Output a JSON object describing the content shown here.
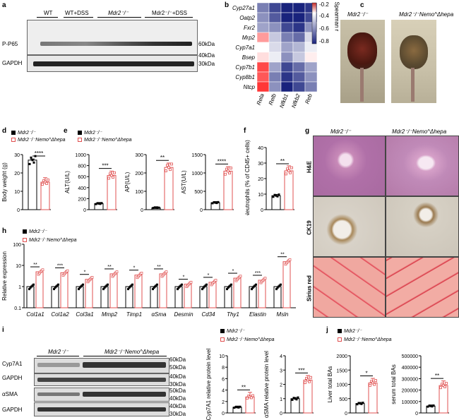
{
  "panels": {
    "a": {
      "letter": "a",
      "groups": [
        "WT",
        "WT+DSS",
        "Mdr2⁻/⁻",
        "Mdr2⁻/⁻+DSS"
      ],
      "rows": [
        "P-P65",
        "GAPDH"
      ],
      "markers": [
        "60kDa",
        "40kDa",
        "30kDa"
      ]
    },
    "b": {
      "letter": "b",
      "genes": [
        "Cyp27a1",
        "Oatp2",
        "Fxr2",
        "Mrp2",
        "Cyp7a1",
        "Bsep",
        "Cyp7b1",
        "Cyp8b1",
        "Ntcp"
      ],
      "columns": [
        "Rela",
        "Relb",
        "Nfkb1",
        "Nfkb2",
        "Reb"
      ],
      "colorbar_ticks": [
        "-0.2",
        "-0.4",
        "-0.6",
        "-0.8"
      ],
      "colorbar_label": "Spearman r"
    },
    "c": {
      "letter": "c",
      "labels": [
        "Mdr2⁻/⁻",
        "Mdr2⁻/⁻Nemo^Δhepa"
      ]
    },
    "d": {
      "letter": "d",
      "legend": [
        "Mdr2⁻/⁻",
        "Mdr2⁻/⁻Nemo^Δhepa"
      ],
      "ylabel": "Body weight (g)",
      "yticks": [
        "0",
        "10",
        "20",
        "30"
      ],
      "sig": "****"
    },
    "e": {
      "letter": "e",
      "legend": [
        "Mdr2⁻/⁻",
        "Mdr2⁻/⁻Nemo^Δhepa"
      ],
      "plots": [
        {
          "ylabel": "ALT(U/L)",
          "yticks": [
            "0",
            "200",
            "400",
            "600",
            "800",
            "1000"
          ],
          "sig": "***"
        },
        {
          "ylabel": "AP(U/L)",
          "yticks": [
            "0",
            "100",
            "200",
            "300"
          ],
          "sig": "**"
        },
        {
          "ylabel": "AST(U/L)",
          "yticks": [
            "0",
            "500",
            "1000",
            "1500"
          ],
          "sig": "****"
        }
      ]
    },
    "f": {
      "letter": "f",
      "ylabel": "Neutrophils (% of CD45+ cells)",
      "yticks": [
        "0",
        "10",
        "20",
        "30",
        "40"
      ],
      "sig": "**"
    },
    "g": {
      "letter": "g",
      "cols": [
        "Mdr2⁻/⁻",
        "Mdr2⁻/⁻Nemo^Δhepa"
      ],
      "rows": [
        "H&E",
        "CK19",
        "Sirius red"
      ]
    },
    "h": {
      "letter": "h",
      "legend": [
        "Mdr2⁻/⁻",
        "Mdr2⁻/⁻Nemo^Δhepa"
      ],
      "ylabel": "Relative expression",
      "yticks": [
        "100",
        "10",
        "1",
        "0.1"
      ],
      "genes": [
        "Col1a1",
        "Col1a2",
        "Col3a1",
        "Mmp2",
        "Timp1",
        "αSma",
        "Desmin",
        "Cd34",
        "Thy1",
        "Elastin",
        "Msln"
      ],
      "sig": [
        "**",
        "***",
        "*",
        "**",
        "*",
        "**",
        "*",
        "*",
        "*",
        "***",
        "**"
      ]
    },
    "i": {
      "letter": "i",
      "groups": [
        "Mdr2⁻/⁻",
        "Mdr2⁻/⁻Nemo^Δhepa"
      ],
      "rows": [
        "Cyp7A1",
        "GAPDH",
        "αSMA",
        "GAPDH"
      ],
      "markers": [
        "60kDa",
        "50kDa",
        "40kDa",
        "30kDa",
        "50kDa",
        "40kDa",
        "40kDa",
        "30kDa"
      ],
      "legend": [
        "Mdr2⁻/⁻",
        "Mdr2⁻/⁻Nemo^Δhepa"
      ],
      "plot1": {
        "ylabel": "Cyp7A1 relative protein level",
        "yticks": [
          "0",
          "2",
          "4",
          "6",
          "8",
          "10"
        ],
        "sig": "**"
      },
      "plot2": {
        "ylabel": "αSMA relative protein level",
        "yticks": [
          "0",
          "1",
          "2",
          "3",
          "4"
        ],
        "sig": "***"
      }
    },
    "j": {
      "letter": "j",
      "legend": [
        "Mdr2⁻/⁻",
        "Mdr2⁻/⁻Nemo^Δhepa"
      ],
      "plot1": {
        "ylabel": "Liver total BAs",
        "yticks": [
          "0",
          "500",
          "1000",
          "1500",
          "2000"
        ],
        "sig": "*"
      },
      "plot2": {
        "ylabel": "serum total BAs",
        "yticks": [
          "0",
          "100000",
          "200000",
          "300000",
          "400000",
          "500000"
        ],
        "sig": "**"
      }
    }
  },
  "chart_data": [
    {
      "type": "heatmap",
      "rows": [
        "Cyp27a1",
        "Oatp2",
        "Fxr2",
        "Mrp2",
        "Cyp7a1",
        "Bsep",
        "Cyp7b1",
        "Cyp8b1",
        "Ntcp"
      ],
      "columns": [
        "Rela",
        "Relb",
        "Nfkb1",
        "Nfkb2",
        "Reb"
      ],
      "values": [
        [
          -0.55,
          -0.7,
          -0.85,
          -0.8,
          -0.75
        ],
        [
          -0.5,
          -0.65,
          -0.85,
          -0.8,
          -0.7
        ],
        [
          -0.45,
          -0.5,
          -0.7,
          -0.75,
          -0.5
        ],
        [
          0.1,
          -0.35,
          -0.55,
          -0.6,
          -0.3
        ],
        [
          -0.2,
          -0.3,
          -0.45,
          -0.4,
          -0.25
        ],
        [
          -0.1,
          -0.25,
          -0.5,
          -0.35,
          -0.15
        ],
        [
          0.35,
          -0.45,
          -0.7,
          -0.6,
          -0.45
        ],
        [
          0.3,
          -0.55,
          -0.75,
          -0.65,
          -0.5
        ],
        [
          0.45,
          -0.5,
          -0.8,
          -0.7,
          -0.55
        ]
      ],
      "colorbar_range": [
        -0.8,
        -0.2
      ]
    },
    {
      "type": "bar",
      "title": "",
      "ylabel": "Body weight (g)",
      "categories": [
        "Mdr2⁻/⁻",
        "Mdr2⁻/⁻Nemo^Δhepa"
      ],
      "values": [
        27,
        15
      ],
      "ylim": [
        0,
        30
      ]
    },
    {
      "type": "bar",
      "ylabel": "ALT(U/L)",
      "categories": [
        "Mdr2⁻/⁻",
        "Mdr2⁻/⁻Nemo^Δhepa"
      ],
      "values": [
        110,
        620
      ],
      "ylim": [
        0,
        1000
      ]
    },
    {
      "type": "bar",
      "ylabel": "AP(U/L)",
      "categories": [
        "Mdr2⁻/⁻",
        "Mdr2⁻/⁻Nemo^Δhepa"
      ],
      "values": [
        10,
        230
      ],
      "ylim": [
        0,
        300
      ]
    },
    {
      "type": "bar",
      "ylabel": "AST(U/L)",
      "categories": [
        "Mdr2⁻/⁻",
        "Mdr2⁻/⁻Nemo^Δhepa"
      ],
      "values": [
        190,
        1050
      ],
      "ylim": [
        0,
        1500
      ]
    },
    {
      "type": "bar",
      "ylabel": "Neutrophils (% of CD45+ cells)",
      "categories": [
        "Mdr2⁻/⁻",
        "Mdr2⁻/⁻Nemo^Δhepa"
      ],
      "values": [
        9,
        25
      ],
      "ylim": [
        0,
        40
      ]
    },
    {
      "type": "bar",
      "ylabel": "Relative expression",
      "categories": [
        "Col1a1",
        "Col1a2",
        "Col3a1",
        "Mmp2",
        "Timp1",
        "αSma",
        "Desmin",
        "Cd34",
        "Thy1",
        "Elastin",
        "Msln"
      ],
      "series": [
        {
          "name": "Mdr2⁻/⁻",
          "values": [
            1,
            1,
            1,
            1,
            1,
            1,
            1,
            1,
            1,
            1,
            1
          ]
        },
        {
          "name": "Mdr2⁻/⁻Nemo^Δhepa",
          "values": [
            5,
            4.5,
            2.2,
            4,
            3.5,
            4,
            1.3,
            1.6,
            2.5,
            2,
            15
          ]
        }
      ],
      "ylim": [
        0.1,
        100
      ],
      "log": true
    },
    {
      "type": "bar",
      "ylabel": "Cyp7A1 relative protein level",
      "categories": [
        "Mdr2⁻/⁻",
        "Mdr2⁻/⁻Nemo^Δhepa"
      ],
      "values": [
        1,
        2.8
      ],
      "ylim": [
        0,
        10
      ]
    },
    {
      "type": "bar",
      "ylabel": "αSMA relative protein level",
      "categories": [
        "Mdr2⁻/⁻",
        "Mdr2⁻/⁻Nemo^Δhepa"
      ],
      "values": [
        1,
        2.3
      ],
      "ylim": [
        0,
        4
      ]
    },
    {
      "type": "bar",
      "ylabel": "Liver total BAs",
      "categories": [
        "Mdr2⁻/⁻",
        "Mdr2⁻/⁻Nemo^Δhepa"
      ],
      "values": [
        330,
        1050
      ],
      "ylim": [
        0,
        2000
      ]
    },
    {
      "type": "bar",
      "ylabel": "serum total BAs",
      "categories": [
        "Mdr2⁻/⁻",
        "Mdr2⁻/⁻Nemo^Δhepa"
      ],
      "values": [
        60000,
        240000
      ],
      "ylim": [
        0,
        500000
      ]
    }
  ]
}
